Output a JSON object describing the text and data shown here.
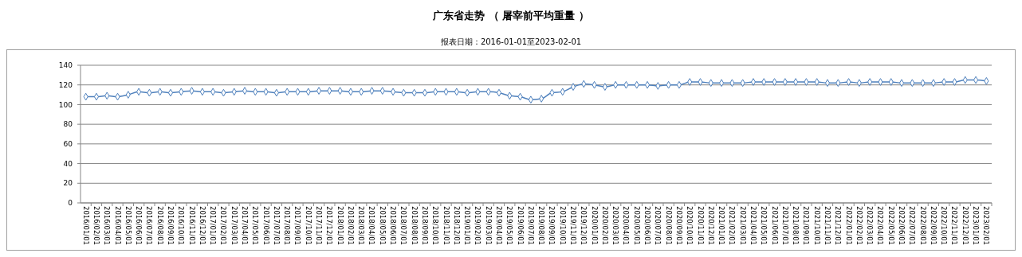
{
  "chart_data": {
    "type": "line",
    "title": "广东省走势 （ 屠宰前平均重量 ）",
    "subtitle": "报表日期：2016-01-01至2023-02-01",
    "categories": [
      "2016/01/01",
      "2016/02/01",
      "2016/03/01",
      "2016/04/01",
      "2016/05/01",
      "2016/06/01",
      "2016/07/01",
      "2016/08/01",
      "2016/09/01",
      "2016/10/01",
      "2016/11/01",
      "2016/12/01",
      "2017/01/01",
      "2017/02/01",
      "2017/03/01",
      "2017/04/01",
      "2017/05/01",
      "2017/06/01",
      "2017/07/01",
      "2017/08/01",
      "2017/09/01",
      "2017/10/01",
      "2017/11/01",
      "2017/12/01",
      "2018/01/01",
      "2018/02/01",
      "2018/03/01",
      "2018/04/01",
      "2018/05/01",
      "2018/06/01",
      "2018/07/01",
      "2018/08/01",
      "2018/09/01",
      "2018/10/01",
      "2018/11/01",
      "2018/12/01",
      "2019/01/01",
      "2019/02/01",
      "2019/03/01",
      "2019/04/01",
      "2019/05/01",
      "2019/06/01",
      "2019/07/01",
      "2019/08/01",
      "2019/09/01",
      "2019/10/01",
      "2019/11/01",
      "2019/12/01",
      "2020/01/01",
      "2020/02/01",
      "2020/03/01",
      "2020/04/01",
      "2020/05/01",
      "2020/06/01",
      "2020/07/01",
      "2020/08/01",
      "2020/09/01",
      "2020/10/01",
      "2020/11/01",
      "2020/12/01",
      "2021/01/01",
      "2021/02/01",
      "2021/03/01",
      "2021/04/01",
      "2021/05/01",
      "2021/06/01",
      "2021/07/01",
      "2021/08/01",
      "2021/09/01",
      "2021/10/01",
      "2021/11/01",
      "2021/12/01",
      "2022/01/01",
      "2022/02/01",
      "2022/03/01",
      "2022/04/01",
      "2022/05/01",
      "2022/06/01",
      "2022/07/01",
      "2022/08/01",
      "2022/09/01",
      "2022/10/01",
      "2022/11/01",
      "2022/12/01",
      "2023/01/01",
      "2023/02/01"
    ],
    "series": [
      {
        "color": "#4f81bd",
        "values": [
          108,
          108,
          109,
          108,
          110,
          113,
          112,
          113,
          112,
          113,
          114,
          113,
          113,
          112,
          113,
          114,
          113,
          113,
          112,
          113,
          113,
          113,
          114,
          114,
          114,
          113,
          113,
          114,
          114,
          113,
          112,
          112,
          112,
          113,
          113,
          113,
          112,
          113,
          113,
          112,
          109,
          108,
          105,
          106,
          112,
          113,
          118,
          121,
          120,
          118,
          120,
          120,
          120,
          120,
          119,
          120,
          120,
          123,
          123,
          122,
          122,
          122,
          122,
          123,
          123,
          123,
          123,
          123,
          123,
          123,
          122,
          122,
          123,
          122,
          123,
          123,
          123,
          122,
          122,
          122,
          122,
          123,
          123,
          125,
          125,
          124
        ]
      }
    ],
    "ylim": [
      0,
      140
    ],
    "yticks": [
      0,
      20,
      40,
      60,
      80,
      100,
      120,
      140
    ],
    "grid": "y",
    "marker": "diamond",
    "line_style": "solid"
  }
}
